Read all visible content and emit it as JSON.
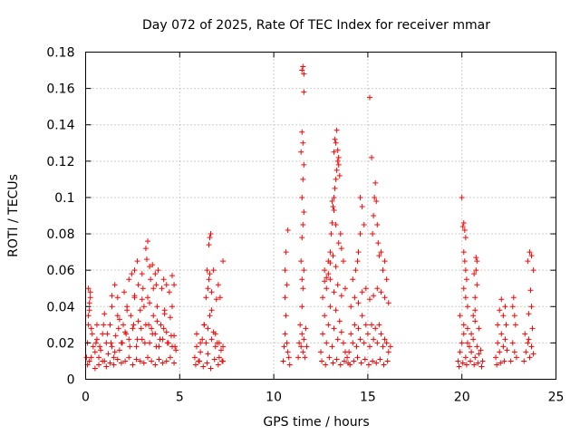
{
  "chart_data": {
    "type": "scatter",
    "title": "Day 072 of 2025, Rate Of TEC Index for receiver mmar",
    "xlabel": "GPS time / hours",
    "ylabel": "ROTI / TECUs",
    "xlim": [
      0,
      25
    ],
    "ylim": [
      0,
      0.18
    ],
    "x_ticks": [
      0,
      5,
      10,
      15,
      20,
      25
    ],
    "x_tick_labels": [
      "0",
      "5",
      "10",
      "15",
      "20",
      "25"
    ],
    "y_ticks": [
      0,
      0.02,
      0.04,
      0.06,
      0.08,
      0.1,
      0.12,
      0.14,
      0.16,
      0.18
    ],
    "y_tick_labels": [
      "0",
      "0.02",
      "0.04",
      "0.06",
      "0.08",
      "0.1",
      "0.12",
      "0.14",
      "0.16",
      "0.18"
    ],
    "grid": true,
    "marker": "+",
    "color": "#ff0000",
    "series": [
      {
        "name": "ROTI",
        "x": [
          0.05,
          0.1,
          0.15,
          0.2,
          0.25,
          0.3,
          0.4,
          0.5,
          0.6,
          0.7,
          0.8,
          0.9,
          1.0,
          1.1,
          1.2,
          1.3,
          1.4,
          1.5,
          1.6,
          1.7,
          1.8,
          1.9,
          2.0,
          2.1,
          2.2,
          2.3,
          2.4,
          2.5,
          2.6,
          2.7,
          2.8,
          2.9,
          3.0,
          3.1,
          3.2,
          3.3,
          3.4,
          3.5,
          3.6,
          3.7,
          3.8,
          3.9,
          4.0,
          4.1,
          4.2,
          4.3,
          4.4,
          4.5,
          4.6,
          4.7,
          4.8,
          0.1,
          0.2,
          0.3,
          0.5,
          0.7,
          0.9,
          1.1,
          1.3,
          1.5,
          1.7,
          1.9,
          2.1,
          2.3,
          2.5,
          2.7,
          2.9,
          3.1,
          3.3,
          3.5,
          3.7,
          3.9,
          4.1,
          4.3,
          4.5,
          4.7,
          0.15,
          0.35,
          0.55,
          0.75,
          0.95,
          1.15,
          1.35,
          1.55,
          1.75,
          1.95,
          2.15,
          2.35,
          2.55,
          2.75,
          2.95,
          3.15,
          3.35,
          3.55,
          3.75,
          3.95,
          4.15,
          4.35,
          4.55,
          4.75,
          0.2,
          0.6,
          1.0,
          1.4,
          1.8,
          2.2,
          2.6,
          3.0,
          3.4,
          3.8,
          4.2,
          4.6,
          0.15,
          0.25,
          1.4,
          2.05,
          2.3,
          2.6,
          2.75,
          2.8,
          3.05,
          3.2,
          3.25,
          3.3,
          3.45,
          3.55,
          3.6,
          3.7,
          3.75,
          4.05,
          4.15,
          4.3,
          4.45,
          4.6,
          4.7,
          1.55,
          1.7,
          2.45,
          3.0,
          3.4,
          3.85,
          5.8,
          5.9,
          6.0,
          6.1,
          6.2,
          6.3,
          6.4,
          6.5,
          6.6,
          6.7,
          6.8,
          6.9,
          7.0,
          7.1,
          7.2,
          7.3,
          5.85,
          6.05,
          6.25,
          6.45,
          6.65,
          6.85,
          7.05,
          7.25,
          5.9,
          6.1,
          6.3,
          6.5,
          6.7,
          6.9,
          7.1,
          7.3,
          6.4,
          6.5,
          6.55,
          6.6,
          6.7,
          6.8,
          6.95,
          7.05,
          7.15,
          7.3,
          6.55,
          6.6,
          6.65,
          6.45,
          10.5,
          10.55,
          10.6,
          10.65,
          10.7,
          10.75,
          10.8,
          10.85,
          10.6,
          10.7,
          10.75,
          10.65,
          10.6,
          11.3,
          11.35,
          11.4,
          11.45,
          11.5,
          11.55,
          11.6,
          11.65,
          11.7,
          11.75,
          11.5,
          11.55,
          11.6,
          11.45,
          11.5,
          11.55,
          11.6,
          11.5,
          11.55,
          11.6,
          11.45,
          11.55,
          11.5,
          11.6,
          11.5,
          11.55,
          11.6,
          11.5,
          12.5,
          12.6,
          12.7,
          12.8,
          12.9,
          13.0,
          13.1,
          13.2,
          13.3,
          13.4,
          13.5,
          13.6,
          13.7,
          13.8,
          13.9,
          12.55,
          12.75,
          12.95,
          13.15,
          13.35,
          13.55,
          13.75,
          13.95,
          12.6,
          12.8,
          13.0,
          13.2,
          13.4,
          13.6,
          13.8,
          12.7,
          12.9,
          13.0,
          13.05,
          13.1,
          13.15,
          13.2,
          13.25,
          13.3,
          13.35,
          13.4,
          13.45,
          13.5,
          13.2,
          13.3,
          13.4,
          13.25,
          13.35,
          13.45,
          13.1,
          13.2,
          13.3,
          13.45,
          13.55,
          13.15,
          13.3,
          13.6,
          13.7,
          13.0,
          12.9,
          12.8,
          12.7,
          14.0,
          14.1,
          14.2,
          14.3,
          14.4,
          14.5,
          14.6,
          14.7,
          14.8,
          14.9,
          15.0,
          15.1,
          15.2,
          15.3,
          15.4,
          15.5,
          15.6,
          15.7,
          15.8,
          15.9,
          16.0,
          16.1,
          16.2,
          14.05,
          14.25,
          14.45,
          14.65,
          14.85,
          15.05,
          15.25,
          15.45,
          15.65,
          15.85,
          16.05,
          14.1,
          14.3,
          14.5,
          14.7,
          14.9,
          15.1,
          15.3,
          15.5,
          15.7,
          15.9,
          16.1,
          14.2,
          14.35,
          14.45,
          14.5,
          14.6,
          14.6,
          14.7,
          14.8,
          15.1,
          15.2,
          15.25,
          15.3,
          15.35,
          15.4,
          15.45,
          15.5,
          15.55,
          15.6,
          15.7,
          15.8,
          15.9,
          16.0,
          19.8,
          19.9,
          20.0,
          20.1,
          20.2,
          20.3,
          20.4,
          20.5,
          20.6,
          20.7,
          20.8,
          20.9,
          21.0,
          21.1,
          19.85,
          20.05,
          20.25,
          20.45,
          20.65,
          20.85,
          21.05,
          19.9,
          20.1,
          20.3,
          20.5,
          20.7,
          20.9,
          20.0,
          20.05,
          20.1,
          20.15,
          20.2,
          20.1,
          20.15,
          20.2,
          20.25,
          20.1,
          20.2,
          20.3,
          20.6,
          20.7,
          20.75,
          20.8,
          20.65,
          20.75,
          20.8,
          20.7,
          21.8,
          21.9,
          22.0,
          22.1,
          22.2,
          22.3,
          22.4,
          21.85,
          22.05,
          22.25,
          21.9,
          22.0,
          22.1,
          22.2,
          22.3,
          22.35,
          22.6,
          22.7,
          22.8,
          22.9,
          22.75,
          22.85,
          22.7,
          22.8,
          23.3,
          23.4,
          23.5,
          23.6,
          23.7,
          23.8,
          23.35,
          23.55,
          23.75,
          23.5,
          23.6,
          23.7,
          23.8,
          23.65,
          23.55,
          23.7
        ],
        "y": [
          0.012,
          0.02,
          0.03,
          0.038,
          0.045,
          0.028,
          0.018,
          0.015,
          0.022,
          0.012,
          0.016,
          0.025,
          0.01,
          0.02,
          0.014,
          0.03,
          0.018,
          0.012,
          0.024,
          0.035,
          0.016,
          0.02,
          0.03,
          0.026,
          0.04,
          0.022,
          0.035,
          0.028,
          0.045,
          0.018,
          0.032,
          0.038,
          0.022,
          0.04,
          0.03,
          0.045,
          0.02,
          0.028,
          0.035,
          0.025,
          0.032,
          0.018,
          0.03,
          0.022,
          0.038,
          0.026,
          0.02,
          0.034,
          0.018,
          0.024,
          0.016,
          0.008,
          0.01,
          0.012,
          0.006,
          0.008,
          0.01,
          0.007,
          0.009,
          0.008,
          0.011,
          0.009,
          0.01,
          0.012,
          0.008,
          0.011,
          0.01,
          0.009,
          0.012,
          0.01,
          0.008,
          0.011,
          0.009,
          0.01,
          0.012,
          0.009,
          0.035,
          0.025,
          0.02,
          0.018,
          0.03,
          0.025,
          0.02,
          0.015,
          0.028,
          0.02,
          0.025,
          0.018,
          0.03,
          0.022,
          0.028,
          0.02,
          0.03,
          0.025,
          0.018,
          0.022,
          0.028,
          0.02,
          0.024,
          0.018,
          0.042,
          0.03,
          0.036,
          0.04,
          0.033,
          0.038,
          0.046,
          0.044,
          0.042,
          0.04,
          0.036,
          0.04,
          0.05,
          0.048,
          0.046,
          0.048,
          0.055,
          0.06,
          0.065,
          0.052,
          0.05,
          0.072,
          0.066,
          0.076,
          0.055,
          0.063,
          0.05,
          0.058,
          0.052,
          0.05,
          0.055,
          0.052,
          0.048,
          0.057,
          0.052,
          0.052,
          0.045,
          0.058,
          0.058,
          0.062,
          0.06,
          0.012,
          0.018,
          0.01,
          0.015,
          0.022,
          0.03,
          0.02,
          0.014,
          0.035,
          0.022,
          0.026,
          0.018,
          0.02,
          0.012,
          0.016,
          0.01,
          0.008,
          0.01,
          0.007,
          0.009,
          0.006,
          0.011,
          0.008,
          0.01,
          0.025,
          0.02,
          0.03,
          0.028,
          0.038,
          0.025,
          0.02,
          0.018,
          0.045,
          0.05,
          0.055,
          0.058,
          0.048,
          0.06,
          0.044,
          0.052,
          0.045,
          0.065,
          0.074,
          0.078,
          0.08,
          0.06,
          0.01,
          0.018,
          0.025,
          0.035,
          0.02,
          0.015,
          0.012,
          0.008,
          0.045,
          0.052,
          0.082,
          0.07,
          0.06,
          0.012,
          0.02,
          0.03,
          0.018,
          0.025,
          0.015,
          0.022,
          0.012,
          0.028,
          0.018,
          0.04,
          0.05,
          0.06,
          0.065,
          0.078,
          0.085,
          0.092,
          0.1,
          0.11,
          0.118,
          0.125,
          0.13,
          0.136,
          0.158,
          0.17,
          0.172,
          0.168,
          0.055,
          0.015,
          0.025,
          0.035,
          0.02,
          0.03,
          0.04,
          0.018,
          0.028,
          0.038,
          0.022,
          0.032,
          0.026,
          0.02,
          0.015,
          0.012,
          0.01,
          0.008,
          0.012,
          0.009,
          0.011,
          0.008,
          0.01,
          0.009,
          0.045,
          0.05,
          0.055,
          0.048,
          0.052,
          0.046,
          0.05,
          0.06,
          0.065,
          0.07,
          0.08,
          0.086,
          0.095,
          0.1,
          0.105,
          0.11,
          0.115,
          0.12,
          0.118,
          0.112,
          0.125,
          0.13,
          0.126,
          0.132,
          0.137,
          0.122,
          0.098,
          0.093,
          0.085,
          0.075,
          0.08,
          0.068,
          0.062,
          0.072,
          0.065,
          0.064,
          0.058,
          0.056,
          0.054,
          0.015,
          0.025,
          0.02,
          0.03,
          0.018,
          0.028,
          0.022,
          0.035,
          0.02,
          0.03,
          0.025,
          0.018,
          0.03,
          0.022,
          0.028,
          0.02,
          0.03,
          0.025,
          0.018,
          0.022,
          0.02,
          0.015,
          0.018,
          0.008,
          0.01,
          0.012,
          0.009,
          0.011,
          0.008,
          0.01,
          0.009,
          0.011,
          0.008,
          0.01,
          0.04,
          0.045,
          0.042,
          0.048,
          0.05,
          0.044,
          0.046,
          0.05,
          0.048,
          0.045,
          0.042,
          0.055,
          0.06,
          0.065,
          0.07,
          0.08,
          0.1,
          0.095,
          0.085,
          0.155,
          0.122,
          0.08,
          0.09,
          0.1,
          0.108,
          0.098,
          0.085,
          0.075,
          0.068,
          0.07,
          0.06,
          0.065,
          0.055,
          0.01,
          0.015,
          0.02,
          0.025,
          0.012,
          0.02,
          0.018,
          0.015,
          0.022,
          0.012,
          0.018,
          0.014,
          0.016,
          0.01,
          0.007,
          0.009,
          0.008,
          0.01,
          0.008,
          0.009,
          0.007,
          0.035,
          0.03,
          0.028,
          0.025,
          0.032,
          0.028,
          0.1,
          0.084,
          0.086,
          0.082,
          0.078,
          0.07,
          0.065,
          0.06,
          0.055,
          0.05,
          0.045,
          0.04,
          0.035,
          0.038,
          0.067,
          0.065,
          0.058,
          0.06,
          0.052,
          0.045,
          0.012,
          0.02,
          0.015,
          0.025,
          0.018,
          0.022,
          0.016,
          0.008,
          0.009,
          0.01,
          0.03,
          0.038,
          0.044,
          0.035,
          0.04,
          0.03,
          0.01,
          0.02,
          0.015,
          0.012,
          0.045,
          0.03,
          0.04,
          0.035,
          0.01,
          0.015,
          0.02,
          0.012,
          0.018,
          0.014,
          0.025,
          0.022,
          0.028,
          0.065,
          0.07,
          0.068,
          0.06,
          0.049,
          0.036,
          0.04
        ]
      }
    ]
  }
}
